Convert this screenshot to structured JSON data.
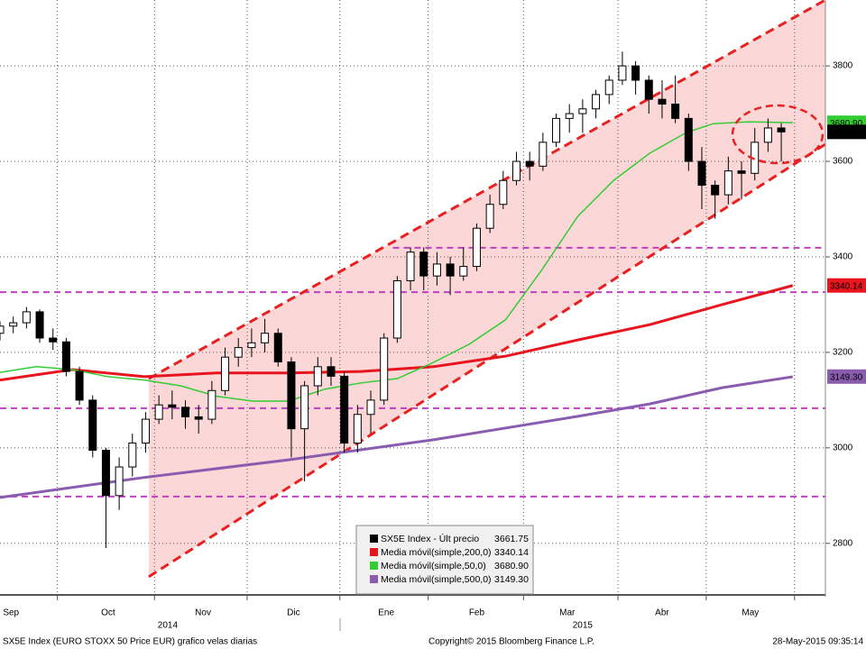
{
  "chart_data": {
    "type": "candlestick",
    "footer_left": "SX5E Index (EURO STOXX 50 Price EUR) grafico velas diarias",
    "footer_center": "Copyright© 2015 Bloomberg Finance L.P.",
    "footer_right": "28-May-2015 09:35:14",
    "xlim": [
      0,
      187
    ],
    "ylim": [
      2692,
      3938
    ],
    "yticks": [
      2800,
      3000,
      3200,
      3400,
      3600,
      3800
    ],
    "xgrid": [
      13,
      35,
      56,
      77,
      97,
      118.6,
      140,
      160,
      180
    ],
    "xticks": [
      {
        "value": 2.5,
        "label": "Sep"
      },
      {
        "value": 24.5,
        "label": "Oct"
      },
      {
        "value": 46,
        "label": "Nov"
      },
      {
        "value": 66.5,
        "label": "Dic"
      },
      {
        "value": 87.5,
        "label": "Ene"
      },
      {
        "value": 108,
        "label": "Feb"
      },
      {
        "value": 128.5,
        "label": "Mar"
      },
      {
        "value": 150,
        "label": "Abr"
      },
      {
        "value": 170,
        "label": "May"
      }
    ],
    "years": [
      {
        "value": 38,
        "label": "2014"
      },
      {
        "value": 132,
        "label": "2015"
      }
    ],
    "grid": true,
    "levels": [
      3419,
      3326,
      3083,
      2898
    ],
    "level_starts": [
      89,
      0,
      0,
      0
    ],
    "level_color": "#c040c0",
    "channel": {
      "color": "#e82020",
      "fill": "#f9c9c9",
      "upper": {
        "x": [
          33.7,
          187
        ],
        "y": [
          3145,
          3938
        ]
      },
      "lower": {
        "x": [
          33.7,
          187
        ],
        "y": [
          2730,
          3636
        ]
      }
    },
    "series": [
      {
        "name": "SX5E Index - Últ precio",
        "color": "#000000",
        "last": 3661.75,
        "x": [
          0,
          3,
          6,
          9,
          12,
          15,
          18,
          21,
          24,
          27,
          30,
          33,
          36,
          39,
          42,
          45,
          48,
          51,
          54,
          57,
          60,
          63,
          66,
          69,
          72,
          75,
          78,
          81,
          84,
          87,
          90,
          93,
          96,
          99,
          102,
          105,
          108,
          111,
          114,
          117,
          120,
          123,
          126,
          129,
          132,
          135,
          138,
          141,
          144,
          147,
          150,
          153,
          156,
          159,
          162,
          165,
          168,
          171,
          174,
          177
        ],
        "open": [
          3240,
          3255,
          3262,
          3285,
          3230,
          3222,
          3160,
          3100,
          2995,
          2900,
          2960,
          3010,
          3060,
          3090,
          3085,
          3065,
          3060,
          3120,
          3190,
          3210,
          3220,
          3240,
          3180,
          3040,
          3130,
          3170,
          3150,
          3010,
          3070,
          3100,
          3230,
          3350,
          3410,
          3360,
          3385,
          3360,
          3380,
          3460,
          3510,
          3560,
          3600,
          3590,
          3640,
          3690,
          3700,
          3710,
          3740,
          3770,
          3800,
          3770,
          3730,
          3720,
          3690,
          3600,
          3550,
          3530,
          3580,
          3575,
          3640,
          3670
        ],
        "high": [
          3265,
          3275,
          3295,
          3290,
          3250,
          3230,
          3170,
          3110,
          3000,
          2980,
          3030,
          3075,
          3110,
          3120,
          3100,
          3090,
          3140,
          3210,
          3230,
          3250,
          3270,
          3250,
          3190,
          3140,
          3190,
          3190,
          3160,
          3090,
          3120,
          3240,
          3360,
          3420,
          3420,
          3410,
          3400,
          3420,
          3470,
          3530,
          3580,
          3620,
          3620,
          3660,
          3700,
          3720,
          3730,
          3750,
          3780,
          3830,
          3810,
          3780,
          3770,
          3780,
          3700,
          3630,
          3560,
          3610,
          3600,
          3670,
          3690,
          3680
        ],
        "low": [
          3225,
          3240,
          3250,
          3220,
          3205,
          3150,
          3090,
          2980,
          2790,
          2870,
          2940,
          2990,
          3050,
          3060,
          3040,
          3030,
          3050,
          3110,
          3170,
          3190,
          3200,
          3170,
          2980,
          2930,
          3110,
          3130,
          2990,
          2990,
          3030,
          3090,
          3220,
          3330,
          3330,
          3340,
          3320,
          3350,
          3370,
          3450,
          3500,
          3550,
          3560,
          3580,
          3630,
          3660,
          3660,
          3690,
          3720,
          3760,
          3740,
          3700,
          3690,
          3680,
          3580,
          3500,
          3480,
          3510,
          3520,
          3560,
          3620,
          3600
        ],
        "close": [
          3255,
          3262,
          3285,
          3230,
          3222,
          3160,
          3100,
          2995,
          2900,
          2960,
          3010,
          3060,
          3090,
          3085,
          3065,
          3060,
          3120,
          3190,
          3210,
          3220,
          3240,
          3180,
          3040,
          3130,
          3170,
          3150,
          3010,
          3070,
          3100,
          3230,
          3350,
          3410,
          3360,
          3385,
          3360,
          3380,
          3460,
          3510,
          3560,
          3600,
          3590,
          3640,
          3690,
          3700,
          3710,
          3740,
          3770,
          3800,
          3770,
          3730,
          3720,
          3690,
          3600,
          3550,
          3530,
          3580,
          3575,
          3640,
          3670,
          3661.75
        ]
      },
      {
        "name": "Media móvil(simple,200,0)",
        "color": "#e8141e",
        "last": 3340.14,
        "x": [
          0,
          16.4,
          32.7,
          49.1,
          65.4,
          81.8,
          98.2,
          114.5,
          130.9,
          147.2,
          163.6,
          179.6
        ],
        "values": [
          3142,
          3164,
          3149,
          3157,
          3157,
          3160,
          3170,
          3192,
          3226,
          3258,
          3300,
          3340
        ]
      },
      {
        "name": "Media móvil(simple,50,0)",
        "color": "#33cc33",
        "last": {
          "value": 3680.9,
          "label": "3680.90"
        },
        "x": [
          0,
          8.2,
          16.4,
          24.5,
          32.7,
          40.9,
          49.1,
          57.3,
          65.4,
          73.6,
          81.8,
          90,
          98.2,
          106.3,
          114.5,
          122.7,
          130.9,
          139,
          147.2,
          155.4,
          161.6,
          169.7,
          179.6
        ],
        "values": [
          3158,
          3170,
          3164,
          3149,
          3142,
          3130,
          3108,
          3098,
          3098,
          3123,
          3136,
          3145,
          3179,
          3217,
          3268,
          3372,
          3485,
          3560,
          3617,
          3660,
          3679,
          3683,
          3681
        ]
      },
      {
        "name": "Media móvil(simple,500,0)",
        "color": "#8a5cb0",
        "last": {
          "value": 3149.3,
          "label": "3149.30"
        },
        "x": [
          0,
          32.7,
          65.4,
          98.2,
          130.9,
          147.2,
          163.6,
          179.6
        ],
        "values": [
          2896,
          2938,
          2975,
          3017,
          3066,
          3092,
          3126,
          3149
        ]
      }
    ]
  }
}
